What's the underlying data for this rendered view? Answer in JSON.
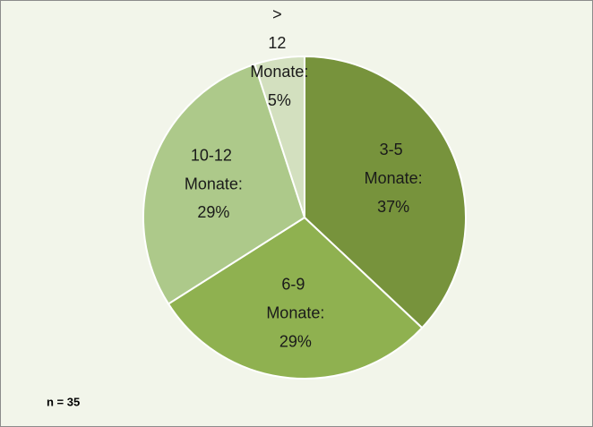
{
  "chart_data": {
    "type": "pie",
    "categories": [
      "3-5 Monate:",
      "6-9 Monate:",
      "10-12 Monate:",
      "> 12 Monate:"
    ],
    "values": [
      37,
      29,
      29,
      5
    ],
    "value_labels": [
      "37%",
      "29%",
      "29%",
      "5%"
    ],
    "colors": [
      "#77933c",
      "#8fb150",
      "#adc98a",
      "#d3e0bf"
    ],
    "annotation": "n = 35"
  }
}
